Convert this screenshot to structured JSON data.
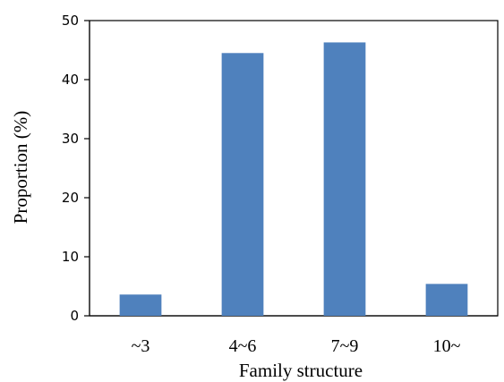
{
  "chart_data": {
    "type": "bar",
    "title": "",
    "xlabel": "Family structure",
    "ylabel": "Proportion (%)",
    "categories": [
      "~3",
      "4~6",
      "7~9",
      "10~"
    ],
    "values": [
      3.6,
      44.5,
      46.3,
      5.4
    ],
    "ylim": [
      0,
      50
    ],
    "yticks": [
      0,
      10,
      20,
      30,
      40,
      50
    ],
    "grid": false,
    "legend": "none",
    "bar_color": "#4f81bd"
  }
}
